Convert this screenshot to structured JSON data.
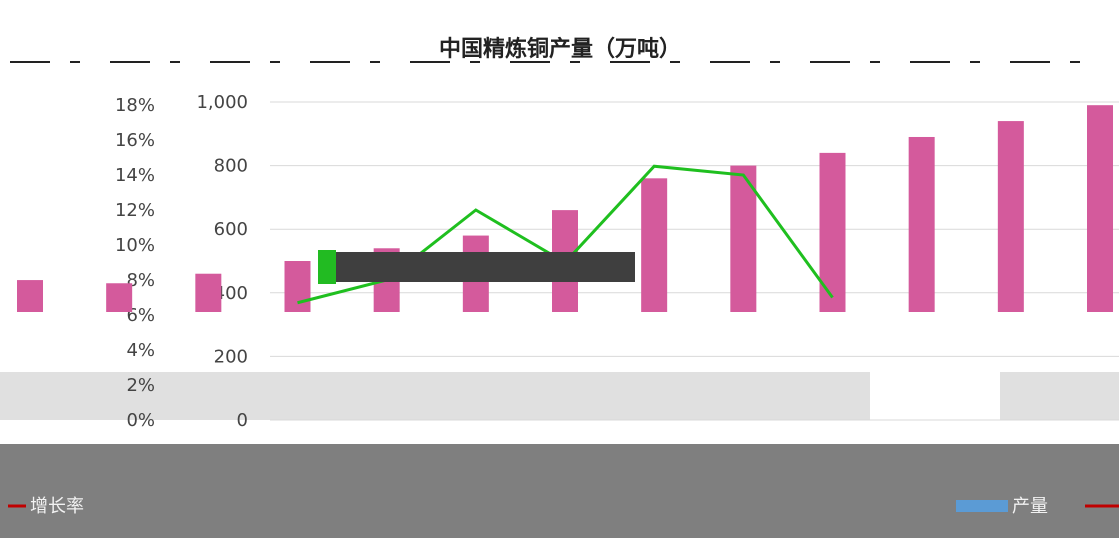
{
  "chart_data": {
    "type": "bar",
    "title": "中国精炼铜产量（万吨）",
    "categories": [
      "",
      "",
      "",
      "",
      "",
      "",
      "",
      "",
      "",
      "",
      "",
      "",
      ""
    ],
    "series": [
      {
        "name": "产量",
        "kind": "bar",
        "axis": "left",
        "values": [
          440,
          430,
          460,
          500,
          540,
          580,
          660,
          760,
          800,
          840,
          890,
          940,
          990
        ]
      },
      {
        "name": "增长率",
        "kind": "line",
        "axis": "right",
        "values": [
          null,
          null,
          null,
          6.7,
          8.0,
          12.0,
          9.0,
          14.5,
          14.0,
          7.0,
          null,
          null,
          null
        ]
      }
    ],
    "y_left": {
      "ticks": [
        "0",
        "200",
        "400",
        "600",
        "800",
        "1,000"
      ],
      "range": [
        0,
        1000
      ]
    },
    "y_right": {
      "ticks": [
        "0%",
        "2%",
        "4%",
        "6%",
        "8%",
        "10%",
        "12%",
        "14%",
        "16%",
        "18%"
      ],
      "range": [
        0,
        18
      ]
    },
    "legend_labels": [
      "增长率",
      "产量"
    ],
    "colors": {
      "bar": "#d45a9c",
      "line": "#1fbf1f",
      "legend_bar": "#5b9bd5",
      "legend_line": "#c00000"
    }
  }
}
